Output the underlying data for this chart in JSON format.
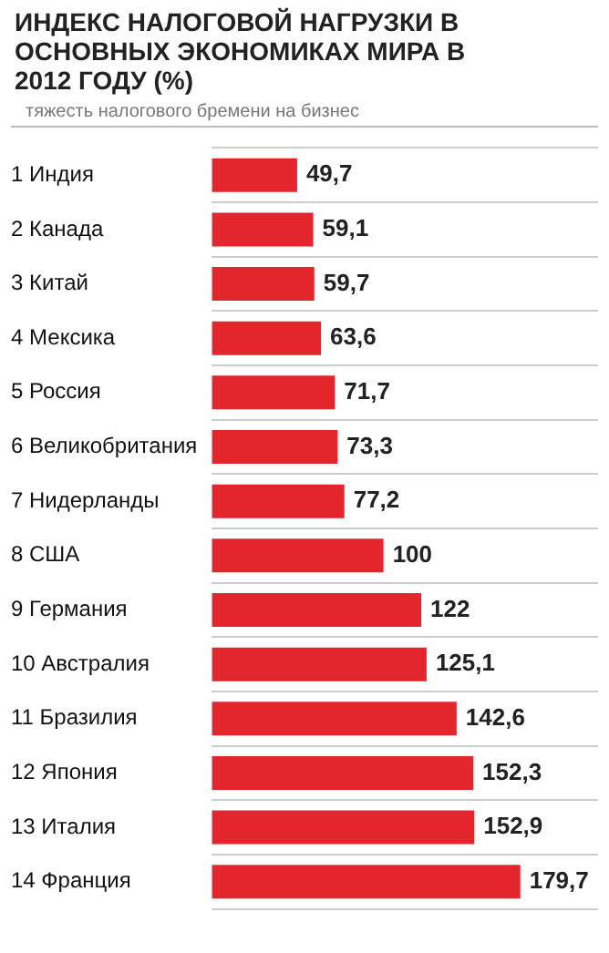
{
  "chart_data": {
    "type": "bar",
    "orientation": "horizontal",
    "title": "ИНДЕКС НАЛОГОВОЙ НАГРУЗКИ В ОСНОВНЫХ ЭКОНОМИКАХ МИРА В 2012 ГОДУ (%)",
    "subtitle": "тяжесть налогового бремени на бизнес",
    "categories": [
      "1 Индия",
      "2 Канада",
      "3 Китай",
      "4 Мексика",
      "5 Россия",
      "6 Великобритания",
      "7 Нидерланды",
      "8 США",
      "9 Германия",
      "10 Австралия",
      "11 Бразилия",
      "12 Япония",
      "13 Италия",
      "14 Франция"
    ],
    "values": [
      49.7,
      59.1,
      59.7,
      63.6,
      71.7,
      73.3,
      77.2,
      100,
      122,
      125.1,
      142.6,
      152.3,
      152.9,
      179.7
    ],
    "value_labels": [
      "49,7",
      "59,1",
      "59,7",
      "63,6",
      "71,7",
      "73,3",
      "77,2",
      "100",
      "122",
      "125,1",
      "142,6",
      "152,3",
      "152,9",
      "179,7"
    ],
    "color": "#e3262c",
    "xlim": [
      0,
      225
    ],
    "tick_labels": "y",
    "grid": "y"
  }
}
